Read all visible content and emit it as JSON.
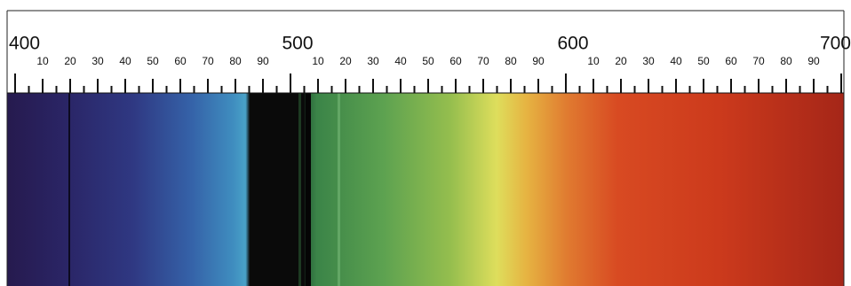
{
  "scale": {
    "segments": [
      {
        "start": "400",
        "tens": [
          "10",
          "20",
          "30",
          "40",
          "50",
          "60",
          "70",
          "80",
          "90"
        ]
      },
      {
        "start": "500",
        "tens": [
          "10",
          "20",
          "30",
          "40",
          "50",
          "60",
          "70",
          "80",
          "90"
        ]
      },
      {
        "start": "600",
        "tens": [
          "10",
          "20",
          "30",
          "40",
          "50",
          "60",
          "70",
          "80",
          "90"
        ]
      }
    ],
    "end": "700"
  }
}
